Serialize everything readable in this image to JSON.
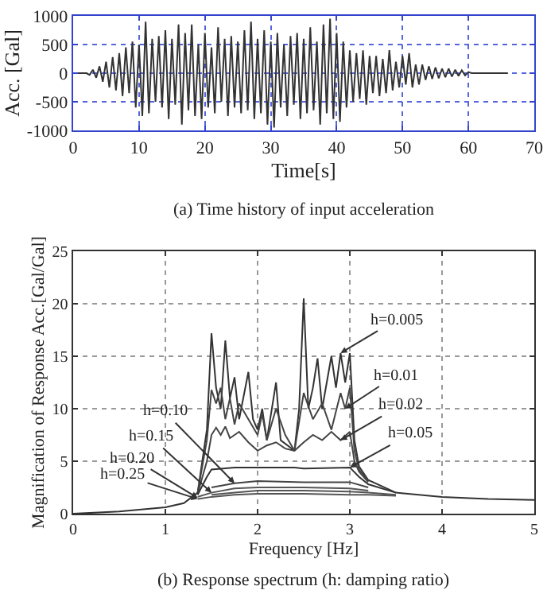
{
  "chart_data": [
    {
      "type": "line",
      "xlabel": "Time[s]",
      "ylabel": "Acc. [Gal]",
      "annotations": [
        "(a) Time history of input acceleration"
      ],
      "x": [
        0,
        0.5,
        1,
        1.5,
        2,
        2.5,
        3,
        3.5,
        4,
        4.5,
        5,
        5.5,
        6,
        6.5,
        7,
        7.5,
        8,
        8.5,
        9,
        9.5,
        10,
        10.5,
        11,
        11.5,
        12,
        12.5,
        13,
        13.5,
        14,
        14.5,
        15,
        15.5,
        16,
        16.5,
        17,
        17.5,
        18,
        18.5,
        19,
        19.5,
        20,
        20.5,
        21,
        21.5,
        22,
        22.5,
        23,
        23.5,
        24,
        24.5,
        25,
        25.5,
        26,
        26.5,
        27,
        27.5,
        28,
        28.5,
        29,
        29.5,
        30,
        30.5,
        31,
        31.5,
        32,
        32.5,
        33,
        33.5,
        34,
        34.5,
        35,
        35.5,
        36,
        36.5,
        37,
        37.5,
        38,
        38.5,
        39,
        39.5,
        40,
        40.5,
        41,
        41.5,
        42,
        42.5,
        43,
        43.5,
        44,
        44.5,
        45,
        45.5,
        46,
        46.5,
        47,
        47.5,
        48,
        48.5,
        49,
        49.5,
        50,
        50.5,
        51,
        51.5,
        52,
        52.5,
        53,
        53.5,
        54,
        54.5,
        55,
        55.5,
        56,
        56.5,
        57,
        57.5,
        58,
        58.5,
        59,
        59.5,
        60,
        60.5,
        61,
        61.5,
        62,
        62.5,
        63,
        63.5,
        64,
        64.5,
        65,
        65.5,
        66
      ],
      "values": [
        0,
        0,
        0,
        0,
        0,
        -30,
        60,
        -80,
        120,
        -150,
        200,
        -250,
        280,
        -300,
        350,
        -400,
        450,
        -350,
        550,
        -600,
        500,
        -750,
        900,
        -700,
        600,
        -500,
        650,
        -600,
        750,
        -800,
        600,
        -550,
        850,
        -900,
        700,
        -650,
        850,
        -750,
        500,
        -800,
        700,
        -600,
        450,
        -700,
        800,
        -500,
        600,
        -750,
        650,
        -600,
        550,
        -700,
        750,
        -650,
        900,
        -800,
        600,
        -700,
        750,
        -900,
        550,
        -950,
        700,
        -600,
        500,
        -750,
        650,
        -550,
        700,
        -800,
        600,
        -700,
        800,
        -650,
        550,
        -900,
        850,
        -700,
        950,
        -800,
        700,
        -850,
        550,
        -600,
        400,
        -500,
        350,
        -450,
        400,
        -550,
        300,
        -350,
        300,
        -400,
        250,
        -350,
        400,
        -300,
        200,
        -250,
        300,
        -200,
        350,
        -250,
        150,
        -200,
        150,
        -120,
        120,
        -100,
        100,
        -90,
        80,
        -70,
        80,
        -60,
        60,
        -50,
        50,
        -40,
        20,
        0,
        0,
        0,
        0,
        0,
        0,
        0,
        0,
        0,
        0,
        0,
        0
      ],
      "color": "#333333",
      "xlim": [
        0,
        70
      ],
      "xticks": [
        0,
        10,
        20,
        30,
        40,
        50,
        60,
        70
      ],
      "ylim": [
        -1000,
        1000
      ],
      "yticks": [
        -1000,
        -500,
        0,
        500,
        1000
      ],
      "grid": true,
      "marker": "none",
      "line_style": "solid"
    },
    {
      "type": "line",
      "xlabel": "Frequency [Hz]",
      "ylabel": "Magnification of Response Acc.[Gal/Gal]",
      "annotations": [
        {
          "text": "h=0.005",
          "x": 2.9,
          "y": 15.3
        },
        {
          "text": "h=0.01",
          "x": 2.95,
          "y": 10
        },
        {
          "text": "h=0.02",
          "x": 2.9,
          "y": 7
        },
        {
          "text": "h=0.05",
          "x": 3,
          "y": 4.4
        },
        {
          "text": "h=0.10",
          "x": 1.75,
          "y": 2.9
        },
        {
          "text": "h=0.15",
          "x": 1.5,
          "y": 2
        },
        {
          "text": "h=0.20",
          "x": 1.35,
          "y": 1.5
        },
        {
          "text": "h=0.25",
          "x": 1.35,
          "y": 1.4
        },
        "(b) Response spectrum (h: damping ratio)"
      ],
      "series": [
        {
          "color": "#333333",
          "x": [
            0,
            0.5,
            1,
            1.2,
            1.35,
            1.45,
            1.5,
            1.55,
            1.6,
            1.65,
            1.7,
            1.75,
            1.8,
            1.9,
            1.95,
            2,
            2.05,
            2.1,
            2.2,
            2.25,
            2.4,
            2.45,
            2.5,
            2.55,
            2.6,
            2.65,
            2.7,
            2.8,
            2.85,
            2.9,
            2.95,
            3,
            3.05,
            3.1,
            3.2,
            3.5,
            4,
            4.5,
            5
          ],
          "values": [
            0,
            0.2,
            0.6,
            1,
            2,
            8,
            17.2,
            12,
            10,
            16.5,
            11,
            13,
            9,
            13.5,
            9,
            8,
            10,
            7,
            12.5,
            7,
            6,
            10,
            20.5,
            10,
            12,
            14.8,
            10,
            15,
            12,
            15.3,
            12.5,
            15.3,
            7,
            4.5,
            3.2,
            2,
            1.6,
            1.4,
            1.3
          ]
        },
        {
          "color": "#444444",
          "x": [
            1.35,
            1.45,
            1.5,
            1.55,
            1.6,
            1.65,
            1.7,
            1.75,
            1.8,
            1.9,
            2,
            2.05,
            2.1,
            2.2,
            2.3,
            2.4,
            2.5,
            2.6,
            2.7,
            2.8,
            2.9,
            2.95,
            3,
            3.05,
            3.1,
            3.2
          ],
          "values": [
            2,
            7,
            11.8,
            10.5,
            12,
            9,
            11,
            8.5,
            10.5,
            9,
            7.5,
            9.5,
            7,
            10,
            7.5,
            6,
            11.5,
            9,
            10.5,
            8,
            11.5,
            10,
            12,
            6,
            4.2,
            3.1
          ]
        },
        {
          "color": "#444444",
          "x": [
            1.35,
            1.45,
            1.5,
            1.55,
            1.6,
            1.65,
            1.7,
            1.8,
            1.9,
            2,
            2.1,
            2.2,
            2.3,
            2.4,
            2.5,
            2.6,
            2.7,
            2.8,
            2.9,
            3,
            3.05,
            3.1,
            3.2
          ],
          "values": [
            1.9,
            5,
            7.5,
            8.2,
            7.5,
            8.3,
            7.2,
            7.8,
            6.8,
            6,
            6.5,
            6.8,
            6.2,
            6,
            6.8,
            7.5,
            7,
            7.8,
            7,
            7.8,
            5,
            4,
            3
          ]
        },
        {
          "color": "#333333",
          "x": [
            1.35,
            1.45,
            1.5,
            1.75,
            2,
            2.4,
            2.5,
            3,
            3.1,
            3.2,
            3.5
          ],
          "values": [
            1.8,
            3.5,
            4.2,
            4.4,
            4.4,
            4.4,
            4.3,
            4.4,
            3.5,
            2.8,
            2
          ]
        },
        {
          "color": "#444444",
          "x": [
            1.5,
            1.75,
            2,
            2.5,
            3,
            3.2
          ],
          "values": [
            2.5,
            2.9,
            3.1,
            3,
            3,
            2.5
          ]
        },
        {
          "color": "#555555",
          "x": [
            1.35,
            1.5,
            1.75,
            2,
            2.5,
            3,
            3.2
          ],
          "values": [
            1.6,
            2,
            2.4,
            2.5,
            2.5,
            2.4,
            2.2
          ]
        },
        {
          "color": "#555555",
          "x": [
            1.5,
            1.75,
            2,
            2.5,
            3,
            3.2,
            3.5
          ],
          "values": [
            1.8,
            2,
            2.2,
            2.2,
            2.1,
            2,
            1.8
          ]
        },
        {
          "color": "#555555",
          "x": [
            1.35,
            1.5,
            1.75,
            2,
            2.5,
            3,
            3.2,
            3.5
          ],
          "values": [
            1.4,
            1.6,
            1.8,
            1.9,
            1.9,
            1.8,
            1.8,
            1.7
          ]
        }
      ],
      "xlim": [
        0,
        5
      ],
      "xticks": [
        0,
        1,
        2,
        3,
        4,
        5
      ],
      "ylim": [
        0,
        25
      ],
      "yticks": [
        0,
        5,
        10,
        15,
        20,
        25
      ],
      "grid": true,
      "marker": "none",
      "line_style": "solid"
    }
  ]
}
